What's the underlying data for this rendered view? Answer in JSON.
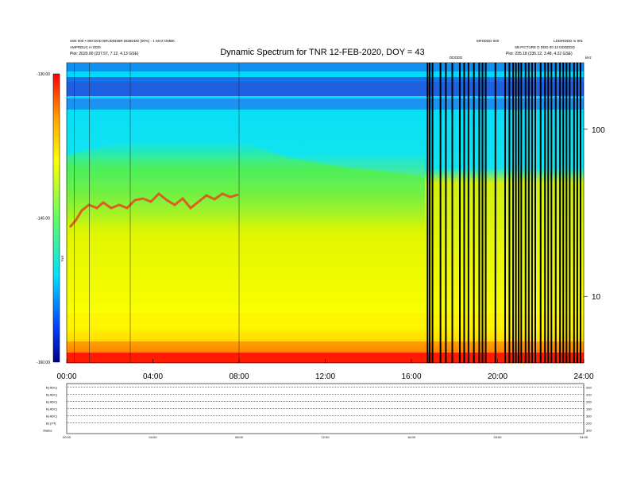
{
  "header": {
    "title": "Dynamic Spectrum for TNR 12-FEB-2020, DOY = 43",
    "left_line1": "SWI 000 • 000 DDD BRUDDDBR DDBDDD (00%) - 1 MAX DMBK",
    "left_line2": "AMPRDUC m DDD",
    "left_line3": "Plot: 2020.00 (237.57, 7.12, 4.13 GSE)",
    "right_top": "LDDIRDDD m 901",
    "right_line1": "MFDDDD 000",
    "right_line2": "SB PICTURE D DDD 00 12 DDDDDD",
    "right_line3": "Plot: 235.18 (235.12, 3.48, 4.22 GSE)",
    "marker_label": "DDDDD",
    "unit_tag": "kHz"
  },
  "chart_data": {
    "type": "heatmap",
    "title": "Dynamic Spectrum for TNR 12-FEB-2020, DOY = 43",
    "x_ticks": [
      "00:00",
      "04:00",
      "08:00",
      "12:00",
      "16:00",
      "20:00",
      "24:00"
    ],
    "x_range_hours": [
      0,
      24
    ],
    "y_scale": "log",
    "y_right_ticks": [
      "100",
      "10"
    ],
    "y_right_tick_values": [
      100,
      10
    ],
    "y_range_khz": [
      4,
      250
    ],
    "colorbar": {
      "ticks": [
        "-130.00",
        "-145.00",
        "-160.00"
      ],
      "tick_values": [
        -130,
        -145,
        -160
      ],
      "range": [
        -160,
        -130
      ],
      "label": "TNR",
      "colors": [
        "#0000a0",
        "#0040ff",
        "#00e0ff",
        "#80ff40",
        "#ffff00",
        "#ffa000",
        "#ff0000"
      ]
    },
    "colors": {
      "upper_band": "#00e0ff",
      "green_band": "#80f040",
      "yellow_body": "#f5f500",
      "red_base": "#ff1a00",
      "blue_stripes": "#1060e0",
      "gap_lines": "#000000",
      "emission_line": "#e05020"
    },
    "data_gaps_hours": [
      16.75,
      16.85,
      16.98,
      17.35,
      17.6,
      17.9,
      18.25,
      18.45,
      18.65,
      18.9,
      19.15,
      19.3,
      19.45,
      19.9,
      20.35,
      20.55,
      20.72,
      20.85,
      20.98,
      21.1,
      21.3,
      21.45,
      21.6,
      21.75,
      22.0,
      22.2,
      22.35,
      22.5,
      22.7,
      22.9,
      23.05,
      23.2,
      23.35,
      23.55,
      23.7,
      23.85
    ],
    "vertical_lines_hours": [
      0.35,
      1.05,
      2.95,
      8.0
    ]
  },
  "lower_panels": {
    "labels": [
      "B|  ADC|",
      "B|  ADC|",
      "B|  ADC|",
      "B|  ADC|",
      "B|  ADC|",
      "B|  (rTf)",
      "Status"
    ],
    "right_values": [
      "200",
      "200",
      "200",
      "100",
      "300",
      "200",
      "300"
    ],
    "x_ticks": [
      "00:00",
      "04:00",
      "08:00",
      "12:00",
      "16:00",
      "20:00",
      "24:00"
    ]
  }
}
